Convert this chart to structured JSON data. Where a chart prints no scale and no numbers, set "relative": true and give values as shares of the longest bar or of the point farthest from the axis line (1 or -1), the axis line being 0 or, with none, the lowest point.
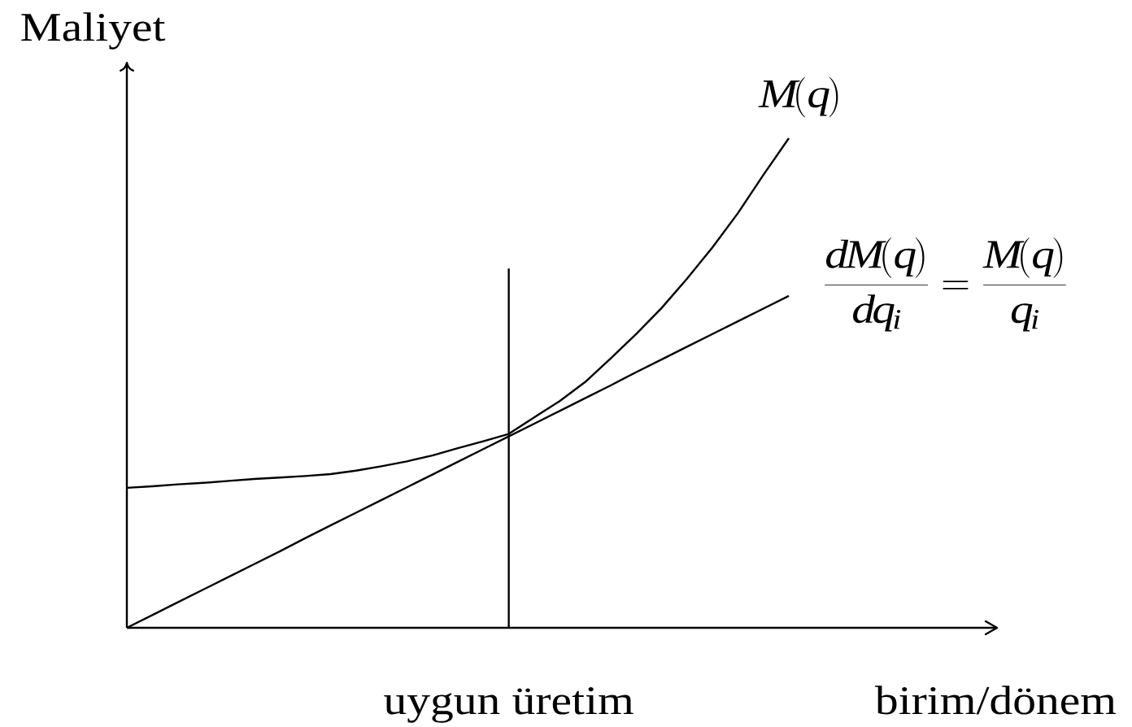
{
  "chart_data": {
    "type": "line",
    "relative": true,
    "ylabel": "Maliyet",
    "xlabel": "birim/dönem",
    "categories": [
      null,
      null,
      null,
      null,
      null,
      null,
      null,
      null,
      null,
      null,
      null,
      null,
      null,
      null,
      null,
      null,
      null,
      null,
      null,
      null,
      null,
      null,
      null,
      null,
      null,
      null,
      null
    ],
    "series": [
      {
        "name": "M(q)",
        "color": "#000000",
        "values": [
          0.286,
          0.289,
          0.293,
          0.296,
          0.3,
          0.304,
          0.307,
          0.31,
          0.314,
          0.321,
          0.33,
          0.34,
          0.352,
          0.367,
          0.381,
          0.396,
          0.43,
          0.463,
          0.502,
          0.55,
          0.6,
          0.653,
          0.713,
          0.777,
          0.847,
          0.925,
          1.0
        ]
      },
      {
        "name": "\\frac{dM(q)}{dq_i}=\\frac{M(q)}{q_i}",
        "color": "#000000",
        "values": [
          0,
          0.026,
          0.052,
          0.078,
          0.104,
          0.13,
          0.156,
          0.183,
          0.209,
          0.235,
          0.261,
          0.287,
          0.313,
          0.339,
          0.365,
          0.391,
          0.417,
          0.443,
          0.469,
          0.495,
          0.522,
          0.548,
          0.574,
          0.6,
          0.626,
          0.652,
          0.678
        ]
      }
    ],
    "annotations": [
      "uygun üretim"
    ]
  }
}
